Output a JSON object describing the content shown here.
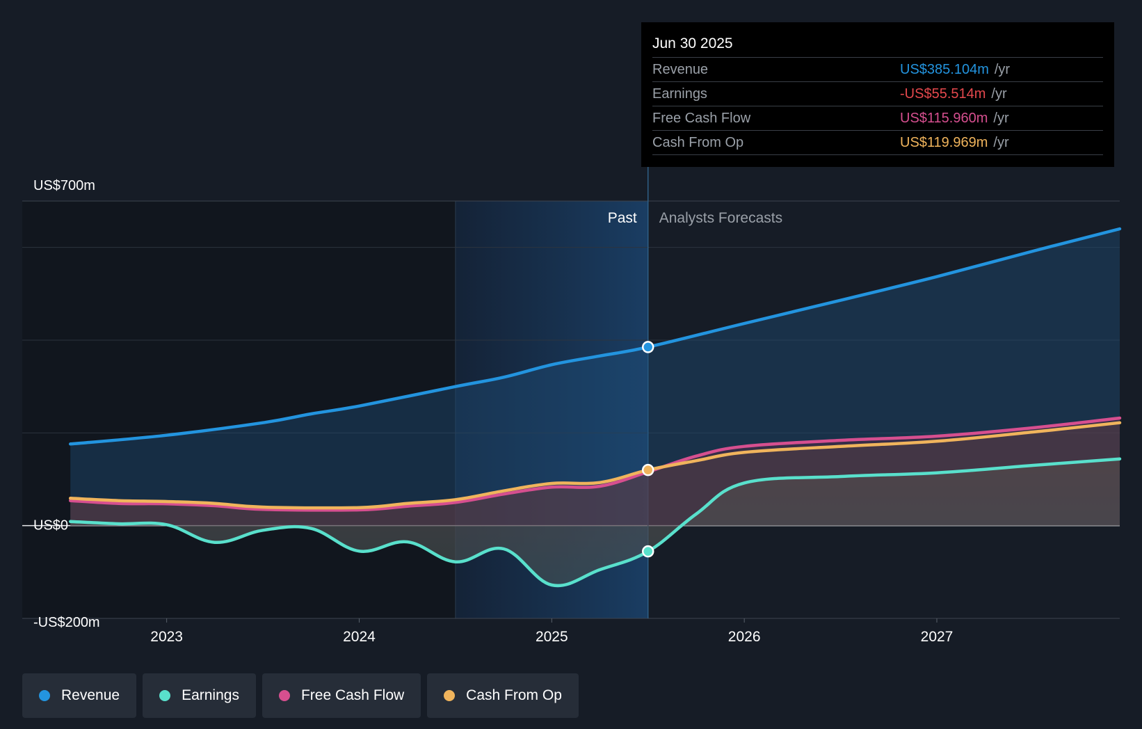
{
  "chart_data": {
    "type": "line",
    "y_unit": "US$m",
    "ylim": [
      -200,
      700
    ],
    "y_tick_labels": [
      {
        "value": 700,
        "label": "US$700m"
      },
      {
        "value": 0,
        "label": "US$0"
      },
      {
        "value": -200,
        "label": "-US$200m"
      }
    ],
    "x_range": [
      2022.25,
      2027.95
    ],
    "x_ticks": [
      2023,
      2024,
      2025,
      2026,
      2027
    ],
    "x_tick_labels": [
      "2023",
      "2024",
      "2025",
      "2026",
      "2027"
    ],
    "past_label": "Past",
    "forecast_label": "Analysts Forecasts",
    "highlight_start": 2024.5,
    "divider_x": 2025.5,
    "series": [
      {
        "name": "Revenue",
        "color": "#2394df",
        "points": [
          [
            2022.5,
            176
          ],
          [
            2023.0,
            195
          ],
          [
            2023.5,
            222
          ],
          [
            2023.75,
            241
          ],
          [
            2024.0,
            258
          ],
          [
            2024.5,
            300
          ],
          [
            2024.75,
            320
          ],
          [
            2025.0,
            347
          ],
          [
            2025.25,
            366
          ],
          [
            2025.5,
            385.104
          ],
          [
            2026.0,
            436
          ],
          [
            2026.5,
            486
          ],
          [
            2027.0,
            537
          ],
          [
            2027.5,
            592
          ],
          [
            2027.95,
            640
          ]
        ]
      },
      {
        "name": "Free Cash Flow",
        "color": "#d64f8f",
        "points": [
          [
            2022.5,
            54
          ],
          [
            2022.75,
            48
          ],
          [
            2023.0,
            47
          ],
          [
            2023.25,
            43
          ],
          [
            2023.5,
            35
          ],
          [
            2024.0,
            34
          ],
          [
            2024.25,
            42
          ],
          [
            2024.5,
            50
          ],
          [
            2024.75,
            68
          ],
          [
            2025.0,
            83
          ],
          [
            2025.25,
            85
          ],
          [
            2025.5,
            115.96
          ],
          [
            2025.75,
            150
          ],
          [
            2026.0,
            171
          ],
          [
            2026.5,
            184
          ],
          [
            2027.0,
            193
          ],
          [
            2027.5,
            211
          ],
          [
            2027.95,
            232
          ]
        ]
      },
      {
        "name": "Cash From Op",
        "color": "#f0b45c",
        "points": [
          [
            2022.5,
            59
          ],
          [
            2022.75,
            54
          ],
          [
            2023.0,
            52
          ],
          [
            2023.25,
            48
          ],
          [
            2023.5,
            40
          ],
          [
            2024.0,
            39
          ],
          [
            2024.25,
            48
          ],
          [
            2024.5,
            56
          ],
          [
            2024.75,
            75
          ],
          [
            2025.0,
            91
          ],
          [
            2025.25,
            93
          ],
          [
            2025.5,
            119.969
          ],
          [
            2025.75,
            140
          ],
          [
            2026.0,
            158
          ],
          [
            2026.5,
            171
          ],
          [
            2027.0,
            182
          ],
          [
            2027.5,
            202
          ],
          [
            2027.95,
            222
          ]
        ]
      },
      {
        "name": "Earnings",
        "color": "#59e0cc",
        "points": [
          [
            2022.5,
            9
          ],
          [
            2022.75,
            4
          ],
          [
            2023.0,
            2
          ],
          [
            2023.25,
            -36
          ],
          [
            2023.5,
            -10
          ],
          [
            2023.75,
            -6
          ],
          [
            2024.0,
            -55
          ],
          [
            2024.25,
            -35
          ],
          [
            2024.5,
            -78
          ],
          [
            2024.75,
            -50
          ],
          [
            2025.0,
            -128
          ],
          [
            2025.25,
            -95
          ],
          [
            2025.5,
            -55.514
          ],
          [
            2025.75,
            25
          ],
          [
            2026.0,
            92
          ],
          [
            2026.5,
            106
          ],
          [
            2027.0,
            114
          ],
          [
            2027.5,
            130
          ],
          [
            2027.95,
            144
          ]
        ]
      }
    ]
  },
  "tooltip": {
    "date": "Jun 30 2025",
    "rows": [
      {
        "label": "Revenue",
        "value": "US$385.104m",
        "unit": "/yr",
        "color": "#2394df"
      },
      {
        "label": "Earnings",
        "value": "-US$55.514m",
        "unit": "/yr",
        "color": "#e5484d"
      },
      {
        "label": "Free Cash Flow",
        "value": "US$115.960m",
        "unit": "/yr",
        "color": "#d64f8f"
      },
      {
        "label": "Cash From Op",
        "value": "US$119.969m",
        "unit": "/yr",
        "color": "#f0b45c"
      }
    ]
  },
  "legend": {
    "items": [
      {
        "label": "Revenue",
        "color": "#2394df"
      },
      {
        "label": "Earnings",
        "color": "#59e0cc"
      },
      {
        "label": "Free Cash Flow",
        "color": "#d64f8f"
      },
      {
        "label": "Cash From Op",
        "color": "#f0b45c"
      }
    ]
  }
}
